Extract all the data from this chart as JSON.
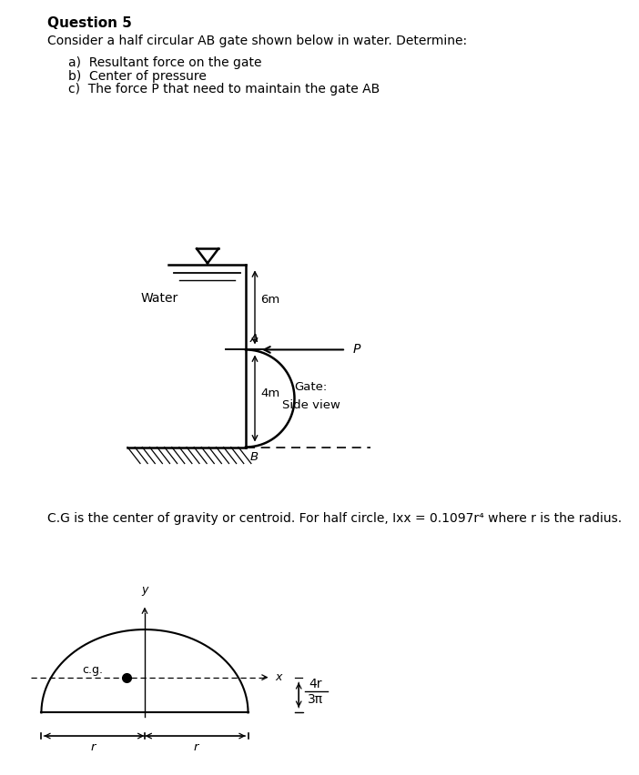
{
  "title": "Question 5",
  "intro_text": "Consider a half circular AB gate shown below in water. Determine:",
  "items": [
    "a)  Resultant force on the gate",
    "b)  Center of pressure",
    "c)  The force P that need to maintain the gate AB"
  ],
  "note_text": "C.G is the center of gravity or centroid. For half circle, Ixx = 0.1097r⁴ where r is the radius.",
  "diagram1": {
    "water_label": "Water",
    "dim_top": "6m",
    "dim_bot": "4m",
    "gate_label1": "Gate:",
    "gate_label2": "Side view",
    "point_A": "A",
    "point_B": "B",
    "force_label": "P"
  },
  "diagram2": {
    "y_label": "y",
    "fraction_num": "4r",
    "fraction_den": "3π",
    "cg_label": "c.g.",
    "x_label": "x",
    "r_label1": "r",
    "r_label2": "r"
  },
  "bg_color": "#ffffff",
  "text_color": "#000000",
  "title_color": "#000000",
  "divider_color": "#c8c8c8"
}
